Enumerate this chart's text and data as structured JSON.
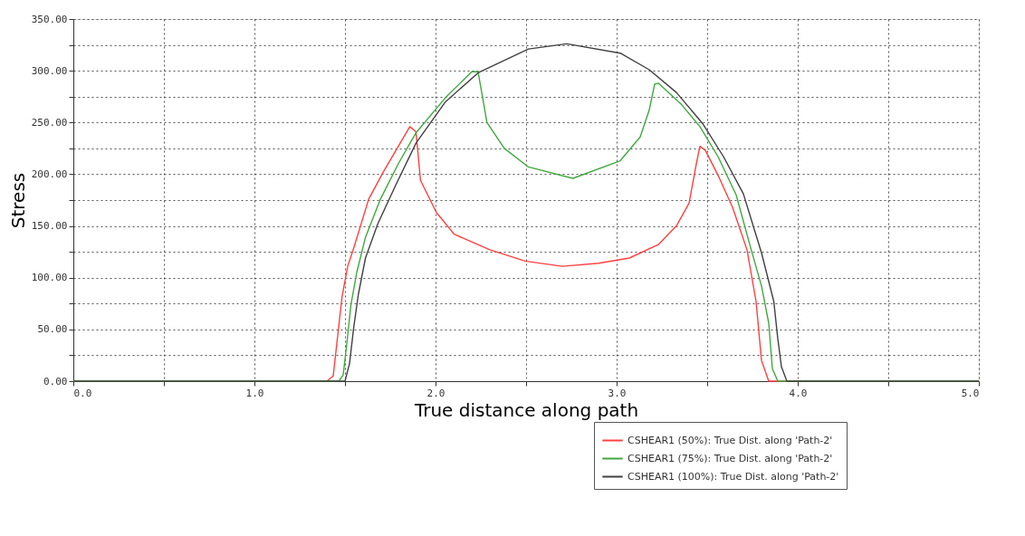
{
  "chart_data": {
    "type": "line",
    "xlabel": "True distance along path",
    "ylabel": "Stress",
    "xlim": [
      0,
      5
    ],
    "ylim": [
      0,
      350
    ],
    "xticks": [
      {
        "value": 0,
        "label": "0.0"
      },
      {
        "value": 0.5,
        "label": null
      },
      {
        "value": 1,
        "label": "1.0"
      },
      {
        "value": 1.5,
        "label": null
      },
      {
        "value": 2,
        "label": "2.0"
      },
      {
        "value": 2.5,
        "label": null
      },
      {
        "value": 3,
        "label": "3.0"
      },
      {
        "value": 3.5,
        "label": null
      },
      {
        "value": 4,
        "label": "4.0"
      },
      {
        "value": 4.5,
        "label": null
      },
      {
        "value": 5,
        "label": "5.0"
      }
    ],
    "yticks": [
      {
        "value": 0,
        "label": "0.00"
      },
      {
        "value": 25,
        "label": null
      },
      {
        "value": 50,
        "label": "50.00"
      },
      {
        "value": 75,
        "label": null
      },
      {
        "value": 100,
        "label": "100.00"
      },
      {
        "value": 125,
        "label": null
      },
      {
        "value": 150,
        "label": "150.00"
      },
      {
        "value": 175,
        "label": null
      },
      {
        "value": 200,
        "label": "200.00"
      },
      {
        "value": 225,
        "label": null
      },
      {
        "value": 250,
        "label": "250.00"
      },
      {
        "value": 275,
        "label": null
      },
      {
        "value": 300,
        "label": "300.00"
      },
      {
        "value": 325,
        "label": null
      },
      {
        "value": 350,
        "label": "350.00"
      }
    ],
    "grid": true,
    "legend": "bottom right",
    "line_style": "solid",
    "marker": "none",
    "series": [
      {
        "name": "CSHEAR1 (50%): True Dist. along 'Path-2'",
        "color": "#ff4040",
        "x": [
          0,
          1.4,
          1.435,
          1.484,
          1.515,
          1.549,
          1.631,
          1.711,
          1.858,
          1.892,
          1.917,
          2.005,
          2.103,
          2.3,
          2.495,
          2.7,
          2.9,
          3.07,
          3.23,
          3.33,
          3.4,
          3.44,
          3.46,
          3.49,
          3.56,
          3.64,
          3.72,
          3.77,
          3.8,
          3.84,
          5
        ],
        "values": [
          0,
          0,
          5,
          82,
          111,
          129,
          176,
          202,
          246,
          241,
          194,
          163,
          142,
          127,
          116,
          111,
          114,
          119,
          132,
          150,
          172,
          210,
          227,
          223,
          199,
          168,
          127,
          77,
          20,
          0,
          0
        ]
      },
      {
        "name": "CSHEAR1 (75%): True Dist. along 'Path-2'",
        "color": "#3fa93f",
        "x": [
          0,
          1.466,
          1.49,
          1.508,
          1.533,
          1.565,
          1.613,
          1.696,
          1.794,
          1.892,
          2.055,
          2.2,
          2.235,
          2.284,
          2.38,
          2.513,
          2.758,
          3.02,
          3.13,
          3.18,
          3.21,
          3.23,
          3.36,
          3.46,
          3.56,
          3.66,
          3.74,
          3.8,
          3.84,
          3.86,
          3.89,
          5
        ],
        "values": [
          0,
          0,
          6,
          33,
          74,
          105,
          139,
          176,
          210,
          240,
          274,
          299,
          299,
          250,
          225,
          207,
          196,
          213,
          236,
          262,
          287,
          288,
          267,
          246,
          217,
          180,
          129,
          92,
          56,
          12,
          0,
          0
        ]
      },
      {
        "name": "CSHEAR1 (100%): True Dist. along 'Path-2'",
        "color": "#404040",
        "x": [
          0,
          1.5,
          1.525,
          1.549,
          1.574,
          1.613,
          1.681,
          1.779,
          1.892,
          2.055,
          2.235,
          2.513,
          2.725,
          3.02,
          3.18,
          3.33,
          3.475,
          3.59,
          3.7,
          3.8,
          3.868,
          3.89,
          3.91,
          3.94,
          5
        ],
        "values": [
          0,
          0,
          17,
          53,
          84,
          119,
          152,
          189,
          230,
          270,
          298,
          321,
          326,
          317,
          301,
          279,
          249,
          217,
          181,
          124,
          77,
          41,
          14,
          0,
          0
        ]
      }
    ]
  }
}
